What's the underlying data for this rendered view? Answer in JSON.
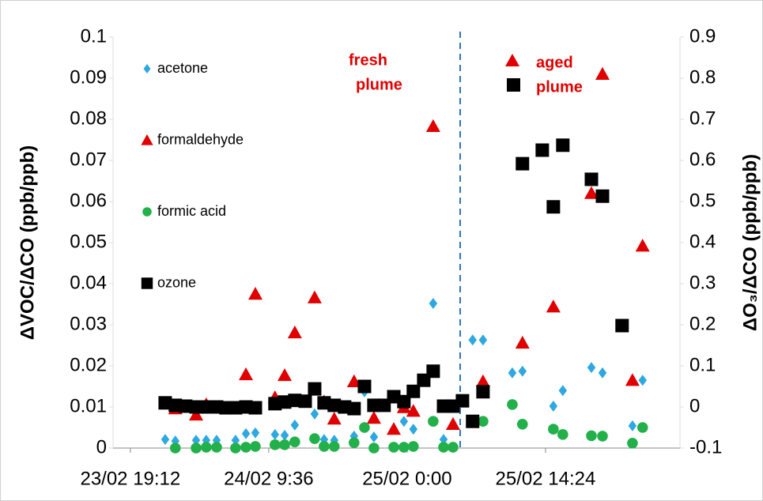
{
  "chart_data": {
    "type": "scatter",
    "y_label": "ΔVOC/ΔCO (ppb/ppb)",
    "y2_label": "ΔO₃/ΔCO (ppb/ppb)",
    "annotations": [
      {
        "lines": [
          "fresh",
          "plume"
        ]
      },
      {
        "lines": [
          "aged",
          "plume"
        ]
      }
    ],
    "xlim": [
      23.725,
      26.183
    ],
    "xticks": [
      {
        "value": 23.8,
        "label": "23/02 19:12"
      },
      {
        "value": 24.4,
        "label": "24/02 9:36"
      },
      {
        "value": 25.0,
        "label": "25/02 0:00"
      },
      {
        "value": 25.6,
        "label": "25/02 14:24"
      }
    ],
    "ylim": [
      0,
      0.1
    ],
    "yticks": [
      0,
      0.01,
      0.02,
      0.03,
      0.04,
      0.05,
      0.06,
      0.07,
      0.08,
      0.09,
      0.1
    ],
    "y2lim": [
      -0.1,
      0.9
    ],
    "y2ticks": [
      -0.1,
      0,
      0.1,
      0.2,
      0.3,
      0.4,
      0.5,
      0.6,
      0.7,
      0.8,
      0.9
    ],
    "legend": "left",
    "series": [
      {
        "name": "acetone",
        "color": "#2ea8e0",
        "marker": "diamond",
        "x": [
          23.951,
          23.995,
          24.085,
          24.129,
          24.174,
          24.256,
          24.301,
          24.342,
          24.427,
          24.469,
          24.513,
          24.599,
          24.64,
          24.684,
          24.77,
          24.815,
          24.856,
          24.942,
          24.986,
          25.027,
          25.113,
          25.158,
          25.284,
          25.329,
          25.456,
          25.5,
          25.634,
          25.675,
          25.799,
          25.847,
          25.977,
          26.021
        ],
        "values": [
          0.0021,
          0.0017,
          0.0019,
          0.0019,
          0.0019,
          0.0019,
          0.0035,
          0.0037,
          0.0033,
          0.0031,
          0.0056,
          0.0083,
          0.0021,
          0.0019,
          0.0029,
          0.0137,
          0.0027,
          0.0046,
          0.0065,
          0.0046,
          0.0352,
          0.0021,
          0.0263,
          0.0263,
          0.0183,
          0.0187,
          0.0102,
          0.014,
          0.0196,
          0.0183,
          0.0054,
          0.0165
        ]
      },
      {
        "name": "formaldehyde",
        "color": "#e00000",
        "marker": "triangle",
        "x": [
          23.995,
          24.085,
          24.129,
          24.301,
          24.342,
          24.427,
          24.469,
          24.513,
          24.599,
          24.64,
          24.684,
          24.77,
          24.856,
          24.942,
          24.986,
          25.027,
          25.113,
          25.199,
          25.329,
          25.5,
          25.634,
          25.799,
          25.847,
          25.977,
          26.021
        ],
        "values": [
          0.0096,
          0.0081,
          0.0106,
          0.0179,
          0.0375,
          0.0123,
          0.0177,
          0.0281,
          0.0366,
          0.0113,
          0.0071,
          0.0162,
          0.0073,
          0.0046,
          0.0099,
          0.009,
          0.0783,
          0.0058,
          0.0162,
          0.0256,
          0.0344,
          0.062,
          0.091,
          0.0165,
          0.0492
        ]
      },
      {
        "name": "formic acid",
        "color": "#22b04a",
        "marker": "circle",
        "x": [
          23.995,
          24.085,
          24.129,
          24.174,
          24.256,
          24.301,
          24.342,
          24.427,
          24.469,
          24.513,
          24.599,
          24.64,
          24.684,
          24.77,
          24.815,
          24.856,
          24.942,
          24.986,
          25.027,
          25.113,
          25.158,
          25.199,
          25.329,
          25.456,
          25.5,
          25.634,
          25.675,
          25.799,
          25.847,
          25.977,
          26.021
        ],
        "values": [
          0,
          0,
          0.0002,
          0.0002,
          0,
          0.0002,
          0.0004,
          0.0008,
          0.0008,
          0.0015,
          0.0023,
          0.0004,
          0.0004,
          0.0013,
          0.005,
          0,
          0.0002,
          0.0002,
          0.0004,
          0.0065,
          0.0002,
          0.0002,
          0.0065,
          0.0106,
          0.0058,
          0.0046,
          0.0033,
          0.003,
          0.0029,
          0.0012,
          0.005
        ]
      },
      {
        "name": "ozone",
        "color": "#000000",
        "marker": "square",
        "axis": "y2",
        "x": [
          23.951,
          23.995,
          24.04,
          24.085,
          24.129,
          24.174,
          24.215,
          24.256,
          24.301,
          24.342,
          24.427,
          24.469,
          24.513,
          24.558,
          24.599,
          24.64,
          24.684,
          24.729,
          24.77,
          24.815,
          24.856,
          24.9,
          24.942,
          24.986,
          25.027,
          25.072,
          25.113,
          25.158,
          25.199,
          25.24,
          25.284,
          25.329,
          25.5,
          25.586,
          25.634,
          25.675,
          25.799,
          25.847,
          25.932
        ],
        "values": [
          0.01,
          0.004,
          0.002,
          0,
          0,
          0,
          -0.002,
          -0.002,
          0,
          -0.002,
          0.008,
          0.012,
          0.016,
          0.014,
          0.044,
          0.01,
          0.004,
          0,
          -0.004,
          0.05,
          0.004,
          0.004,
          0.025,
          0.013,
          0.038,
          0.065,
          0.087,
          0.002,
          0.002,
          0.015,
          -0.035,
          0.037,
          0.592,
          0.625,
          0.487,
          0.637,
          0.554,
          0.513,
          0.198
        ]
      }
    ]
  }
}
